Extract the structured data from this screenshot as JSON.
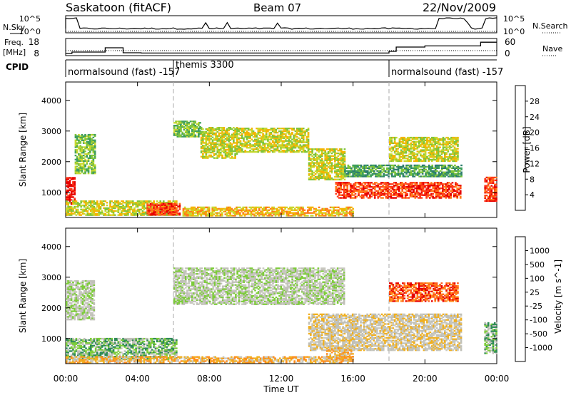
{
  "header": {
    "site": "Saskatoon (fitACF)",
    "beam": "Beam 07",
    "date": "22/Nov/2009"
  },
  "sky_panel": {
    "left_label": "N.Sky",
    "right_label": "N.Search",
    "left_ticks": [
      "10^5",
      "10^0"
    ],
    "right_ticks": [
      "10^5",
      "10^0"
    ]
  },
  "freq_panel": {
    "left_label": "Freq.",
    "left_unit": "[MHz]",
    "left_ticks": [
      "18",
      "8"
    ],
    "right_label": "Nave",
    "right_ticks": [
      "60",
      "0"
    ],
    "freq_mhz": [
      {
        "t": 0.0,
        "v": 9.5
      },
      {
        "t": 0.35,
        "v": 10.5
      },
      {
        "t": 2.2,
        "v": 13.5
      },
      {
        "t": 3.2,
        "v": 10.0
      },
      {
        "t": 4.2,
        "v": 9.8
      },
      {
        "t": 9.0,
        "v": 9.8
      },
      {
        "t": 14.5,
        "v": 9.8
      },
      {
        "t": 18.0,
        "v": 11.0
      },
      {
        "t": 18.4,
        "v": 14.0
      },
      {
        "t": 20.0,
        "v": 14.8
      },
      {
        "t": 23.1,
        "v": 17.4
      },
      {
        "t": 24.0,
        "v": 17.4
      }
    ],
    "nave_level": 11.5
  },
  "cpid": {
    "label": "CPID",
    "programs": [
      {
        "name": "normalsound (fast) -157",
        "start": 0.0
      },
      {
        "name": "themis 3300",
        "start": 6.0
      },
      {
        "name": "normalsound (fast) -157",
        "start": 18.0
      }
    ]
  },
  "chart_data": {
    "type": "heatmap",
    "xlabel": "Time UT",
    "xticks": [
      "00:00",
      "04:00",
      "08:00",
      "12:00",
      "16:00",
      "20:00",
      "00:00"
    ],
    "x_range_hours": [
      0,
      24
    ],
    "ylabel": "Slant Range [km]",
    "ylim_km": [
      180,
      4600
    ],
    "yticks": [
      1000,
      2000,
      3000,
      4000
    ],
    "mode_change_hours": [
      6.0,
      18.0
    ],
    "power": {
      "colorbar_label": "Power [dB]",
      "tick_labels": [
        "28",
        "24",
        "20",
        "16",
        "12",
        "8",
        "4"
      ],
      "colors": [
        "#0000ee",
        "#2255cc",
        "#2e7d6e",
        "#3f9f5c",
        "#7fc43a",
        "#c8d82e",
        "#f4b400",
        "#ff7a1a",
        "#ff3a1a",
        "#e60000"
      ],
      "regions": [
        {
          "t0": 0.0,
          "t1": 0.5,
          "r0": 600,
          "r1": 1500,
          "level": 9
        },
        {
          "t0": 0.5,
          "t1": 1.6,
          "r0": 1600,
          "r1": 2900,
          "level": 4
        },
        {
          "t0": 0.0,
          "t1": 6.2,
          "r0": 240,
          "r1": 700,
          "level": 5
        },
        {
          "t0": 4.5,
          "t1": 6.3,
          "r0": 250,
          "r1": 650,
          "level": 8
        },
        {
          "t0": 6.0,
          "t1": 7.5,
          "r0": 2800,
          "r1": 3300,
          "level": 4
        },
        {
          "t0": 7.5,
          "t1": 9.5,
          "r0": 2100,
          "r1": 3100,
          "level": 5
        },
        {
          "t0": 9.5,
          "t1": 13.5,
          "r0": 2300,
          "r1": 3100,
          "level": 5
        },
        {
          "t0": 13.5,
          "t1": 15.5,
          "r0": 1400,
          "r1": 2400,
          "level": 5
        },
        {
          "t0": 15.0,
          "t1": 22.0,
          "r0": 800,
          "r1": 1300,
          "level": 8
        },
        {
          "t0": 15.5,
          "t1": 22.0,
          "r0": 1500,
          "r1": 1900,
          "level": 3
        },
        {
          "t0": 18.0,
          "t1": 21.8,
          "r0": 2000,
          "r1": 2800,
          "level": 5
        },
        {
          "t0": 6.5,
          "t1": 16.0,
          "r0": 220,
          "r1": 500,
          "level": 6
        },
        {
          "t0": 23.3,
          "t1": 24.0,
          "r0": 700,
          "r1": 1500,
          "level": 8
        }
      ]
    },
    "velocity": {
      "colorbar_label": "Velocity [m s^-1]",
      "tick_labels": [
        "1000",
        "500",
        "100",
        "25",
        "-25",
        "-100",
        "-500",
        "-1000"
      ],
      "colors": [
        "#1f3fb8",
        "#3b6fd0",
        "#2e8b57",
        "#7dcc3a",
        "#c0c0b8",
        "#c8c8c0",
        "#f0b020",
        "#ff8c1a",
        "#ff5a1a",
        "#e60000"
      ],
      "regions": [
        {
          "t0": 0.0,
          "t1": 1.6,
          "r0": 1600,
          "r1": 2900,
          "level": 4
        },
        {
          "t0": 0.0,
          "t1": 6.2,
          "r0": 300,
          "r1": 1000,
          "level": 3
        },
        {
          "t0": 6.0,
          "t1": 15.5,
          "r0": 2100,
          "r1": 3300,
          "level": 4
        },
        {
          "t0": 13.5,
          "t1": 22.0,
          "r0": 600,
          "r1": 1800,
          "level": 5
        },
        {
          "t0": 18.0,
          "t1": 21.8,
          "r0": 2200,
          "r1": 2800,
          "level": 8
        },
        {
          "t0": 0.0,
          "t1": 16.0,
          "r0": 200,
          "r1": 400,
          "level": 6
        },
        {
          "t0": 14.5,
          "t1": 16.0,
          "r0": 300,
          "r1": 700,
          "level": 6
        },
        {
          "t0": 23.3,
          "t1": 24.0,
          "r0": 500,
          "r1": 1500,
          "level": 3
        }
      ]
    }
  }
}
